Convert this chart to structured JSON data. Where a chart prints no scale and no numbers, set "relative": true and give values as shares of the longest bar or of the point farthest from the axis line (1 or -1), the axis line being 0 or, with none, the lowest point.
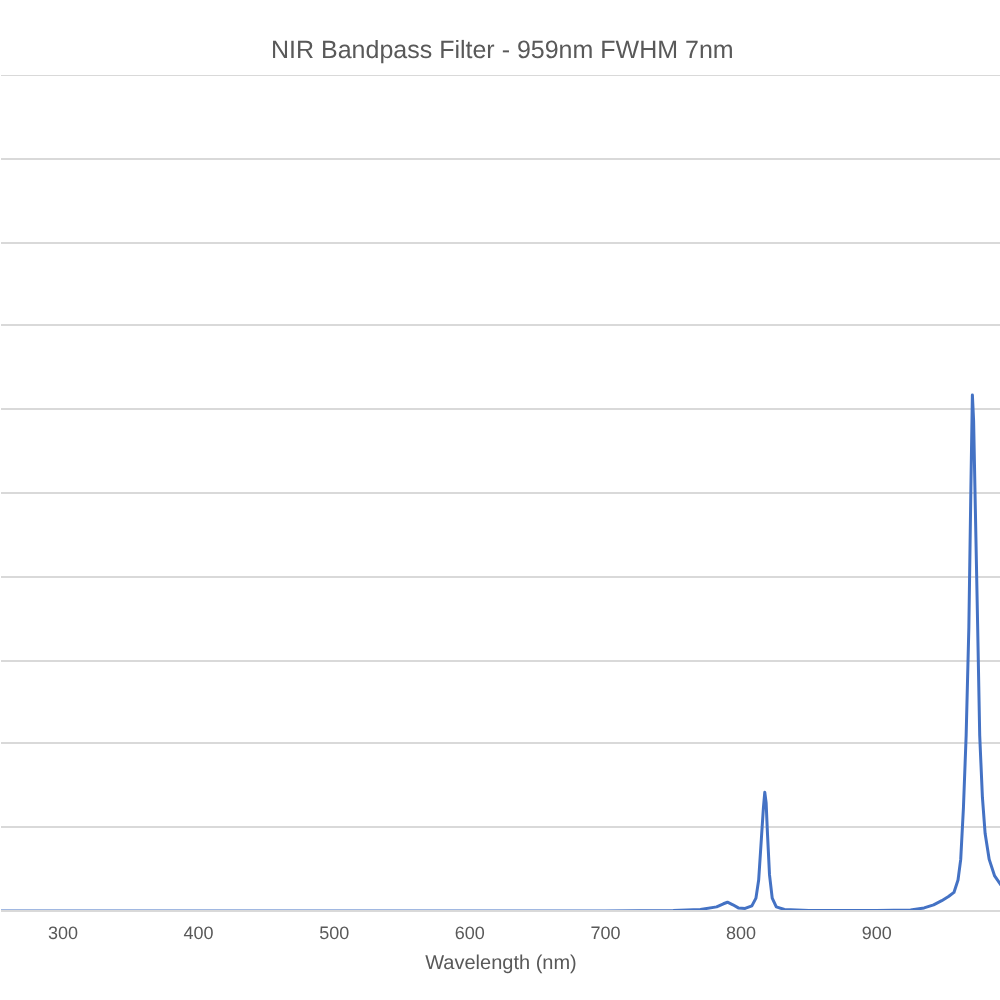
{
  "chart_data": {
    "type": "line",
    "title": "NIR Bandpass Filter - 959nm FWHM 7nm",
    "xlabel": "Wavelength (nm)",
    "x": [
      254.3,
      700,
      750,
      770,
      782,
      787,
      790,
      794,
      798,
      803,
      808,
      811,
      813,
      815,
      816.5,
      817.5,
      818.5,
      819.5,
      821,
      823,
      826,
      832,
      850,
      900,
      925,
      935,
      942,
      948,
      953,
      957,
      960,
      962,
      964,
      966,
      968,
      969.5,
      970.6,
      971.5,
      973,
      974.5,
      976,
      978,
      980,
      983,
      987,
      991.7
    ],
    "values": [
      0,
      0,
      0.001,
      0.003,
      0.008,
      0.014,
      0.017,
      0.012,
      0.006,
      0.005,
      0.01,
      0.025,
      0.06,
      0.14,
      0.2,
      0.23,
      0.21,
      0.15,
      0.07,
      0.025,
      0.008,
      0.003,
      0.001,
      0.001,
      0.002,
      0.006,
      0.012,
      0.02,
      0.028,
      0.036,
      0.06,
      0.1,
      0.2,
      0.34,
      0.55,
      0.82,
      1.0,
      0.95,
      0.75,
      0.55,
      0.34,
      0.22,
      0.15,
      0.1,
      0.068,
      0.05
    ],
    "color": "#4472c4",
    "relative": true,
    "xlim": [
      254.3,
      991.7
    ],
    "xticks": [
      300,
      400,
      500,
      600,
      700,
      800,
      900
    ],
    "grid": "y"
  }
}
